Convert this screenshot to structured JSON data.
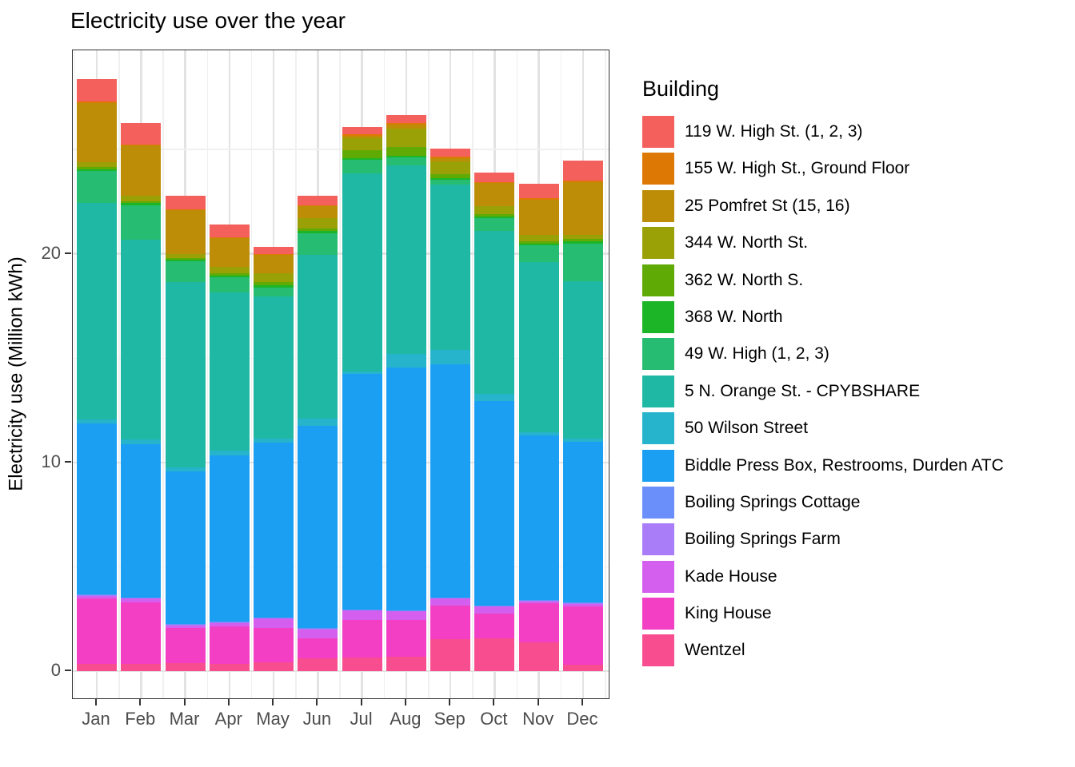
{
  "title": "Electricity use over the year",
  "legend": {
    "title": "Building"
  },
  "chart_data": {
    "type": "bar",
    "stacked": true,
    "title": "Electricity use over the year",
    "xlabel": "",
    "ylabel": "Electricity use (Million kWh)",
    "categories": [
      "Jan",
      "Feb",
      "Mar",
      "Apr",
      "May",
      "Jun",
      "Jul",
      "Aug",
      "Sep",
      "Oct",
      "Nov",
      "Dec"
    ],
    "ylim": [
      -1.3,
      29.75
    ],
    "yticks": [
      0,
      10,
      20
    ],
    "minor_yticks": [
      5,
      15,
      25
    ],
    "grid": true,
    "legend_position": "right",
    "note": "series listed in legend order; bars stack with last series at the bottom",
    "series": [
      {
        "name": "119 W. High St. (1, 2, 3)",
        "color": "#f4615d",
        "values": [
          1.05,
          1.0,
          0.65,
          0.6,
          0.33,
          0.45,
          0.35,
          0.4,
          0.39,
          0.46,
          0.7,
          0.95
        ]
      },
      {
        "name": "155 W. High St., Ground Floor",
        "color": "#de7805",
        "values": [
          0.07,
          0.05,
          0.05,
          0.04,
          0.04,
          0.04,
          0.05,
          0.05,
          0.05,
          0.05,
          0.05,
          0.05
        ]
      },
      {
        "name": "25 Pomfret St (15, 16)",
        "color": "#bd8d07",
        "values": [
          2.84,
          2.4,
          2.1,
          1.4,
          0.9,
          0.6,
          0.15,
          0.2,
          0.16,
          1.1,
          1.7,
          2.55
        ]
      },
      {
        "name": "344 W. North St.",
        "color": "#99a107",
        "values": [
          0.25,
          0.28,
          0.2,
          0.3,
          0.4,
          0.5,
          0.55,
          0.9,
          0.6,
          0.4,
          0.3,
          0.2
        ]
      },
      {
        "name": "362 W. North S.",
        "color": "#5faa05",
        "values": [
          0.1,
          0.1,
          0.08,
          0.1,
          0.15,
          0.12,
          0.37,
          0.4,
          0.2,
          0.12,
          0.1,
          0.1
        ]
      },
      {
        "name": "368 W. North",
        "color": "#1cb528",
        "values": [
          0.09,
          0.1,
          0.08,
          0.1,
          0.12,
          0.1,
          0.08,
          0.08,
          0.08,
          0.08,
          0.1,
          0.1
        ]
      },
      {
        "name": "49 W. High (1, 2, 3)",
        "color": "#26bc71",
        "values": [
          1.51,
          1.65,
          1.0,
          0.7,
          0.45,
          1.04,
          0.66,
          0.37,
          0.25,
          0.6,
          0.8,
          1.8
        ]
      },
      {
        "name": "5 N. Orange St. - CPYBSHARE",
        "color": "#1fb8a4",
        "values": [
          10.38,
          9.57,
          8.85,
          7.6,
          6.78,
          7.84,
          9.51,
          9.06,
          7.9,
          7.82,
          8.14,
          7.56
        ]
      },
      {
        "name": "50 Wilson Street",
        "color": "#26b3cc",
        "values": [
          0.19,
          0.24,
          0.19,
          0.21,
          0.21,
          0.35,
          0.1,
          0.63,
          0.7,
          0.32,
          0.15,
          0.15
        ]
      },
      {
        "name": "Biddle Press Box, Restrooms, Durden ATC",
        "color": "#1b9ff2",
        "values": [
          8.22,
          7.33,
          7.33,
          7.98,
          8.38,
          9.68,
          11.29,
          11.64,
          11.17,
          9.81,
          7.91,
          7.71
        ]
      },
      {
        "name": "Boiling Springs Cottage",
        "color": "#6b8ffa",
        "values": [
          0.02,
          0.02,
          0.02,
          0.02,
          0.02,
          0.02,
          0.02,
          0.02,
          0.02,
          0.02,
          0.02,
          0.02
        ]
      },
      {
        "name": "Boiling Springs Farm",
        "color": "#a97df8",
        "values": [
          0.02,
          0.02,
          0.02,
          0.02,
          0.02,
          0.02,
          0.02,
          0.02,
          0.02,
          0.02,
          0.02,
          0.02
        ]
      },
      {
        "name": "Kade House",
        "color": "#d45fef",
        "values": [
          0.15,
          0.19,
          0.15,
          0.18,
          0.46,
          0.47,
          0.47,
          0.43,
          0.34,
          0.34,
          0.11,
          0.12
        ]
      },
      {
        "name": "King House",
        "color": "#f23fc4",
        "values": [
          3.13,
          2.96,
          1.7,
          1.81,
          1.66,
          0.96,
          1.79,
          1.75,
          1.63,
          1.21,
          1.88,
          2.8
        ]
      },
      {
        "name": "Wentzel",
        "color": "#f84e8f",
        "values": [
          0.34,
          0.34,
          0.37,
          0.34,
          0.41,
          0.6,
          0.66,
          0.7,
          1.52,
          1.56,
          1.37,
          0.32
        ]
      }
    ]
  }
}
